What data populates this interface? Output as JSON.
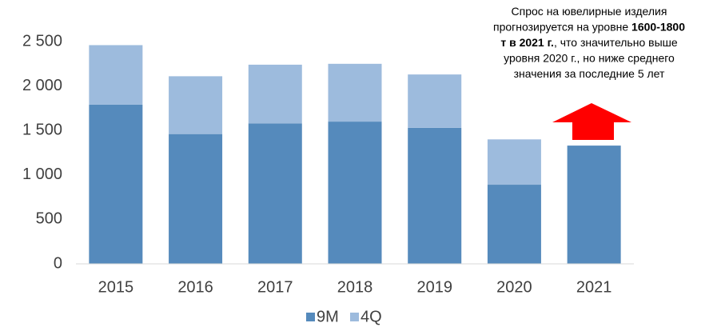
{
  "chart_data": {
    "type": "stacked_bar",
    "categories": [
      "2015",
      "2016",
      "2017",
      "2018",
      "2019",
      "2020",
      "2021"
    ],
    "series": [
      {
        "name": "9M",
        "color": "#558abc",
        "values": [
          1790,
          1460,
          1580,
          1600,
          1530,
          890,
          1330
        ]
      },
      {
        "name": "4Q",
        "color": "#9dbbdd",
        "values": [
          670,
          650,
          660,
          650,
          600,
          510,
          null
        ]
      }
    ],
    "ylim": [
      0,
      2500
    ],
    "yticks": [
      0,
      500,
      {
        "value": 1000,
        "label": "1 000"
      },
      {
        "value": 1500,
        "label": "1 500"
      },
      {
        "value": 2000,
        "label": "2 000"
      },
      {
        "value": 2500,
        "label": "2 500"
      }
    ],
    "grid": false,
    "legend": "bottom",
    "annotation": [
      [
        {
          "text": "Спрос на ювелирные изделия",
          "bold": false
        }
      ],
      [
        {
          "text": "прогнозируется на уровне ",
          "bold": false
        },
        {
          "text": "1600-1800",
          "bold": true
        }
      ],
      [
        {
          "text": "т в 2021 г.",
          "bold": true
        },
        {
          "text": ", что значительно выше",
          "bold": false
        }
      ],
      [
        {
          "text": "уровня 2020 г., но ниже среднего",
          "bold": false
        }
      ],
      [
        {
          "text": "значения за последние 5 лет",
          "bold": false
        }
      ]
    ]
  }
}
